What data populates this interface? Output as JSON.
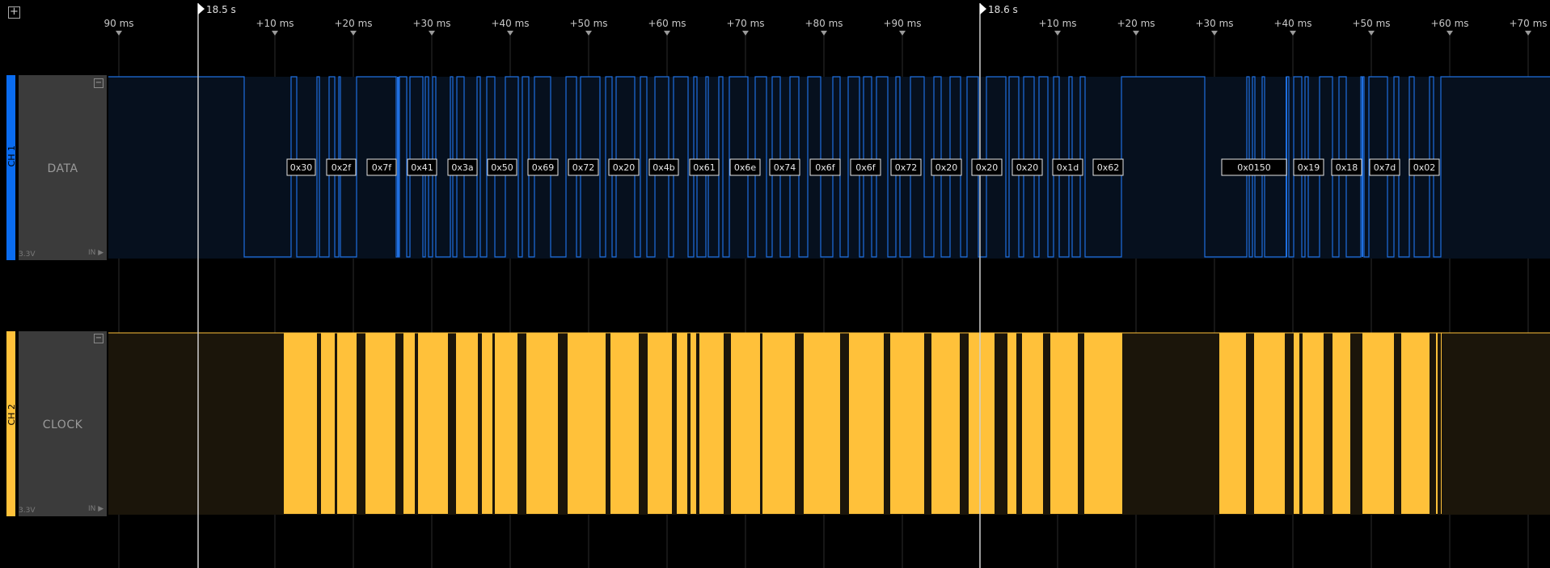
{
  "toolbar": {
    "add_icon": "plus-square-icon"
  },
  "markers": [
    {
      "label": "18.5 s"
    },
    {
      "label": "18.6 s"
    }
  ],
  "ticks": [
    "90 ms",
    "+10 ms",
    "+20 ms",
    "+30 ms",
    "+40 ms",
    "+50 ms",
    "+60 ms",
    "+70 ms",
    "+80 ms",
    "+90 ms",
    "+10 ms",
    "+20 ms",
    "+30 ms",
    "+40 ms",
    "+50 ms",
    "+60 ms",
    "+70 ms"
  ],
  "channels": [
    {
      "tag": "CH 1",
      "name": "DATA",
      "voltage": "3.3V",
      "direction": "IN",
      "color": "#0a6cf0"
    },
    {
      "tag": "CH 2",
      "name": "CLOCK",
      "voltage": "3.3V",
      "direction": "IN",
      "color": "#ffc13a"
    }
  ],
  "decoded": [
    "0x30",
    "0x2f",
    "0x7f",
    "0x41",
    "0x3a",
    "0x50",
    "0x69",
    "0x72",
    "0x20",
    "0x4b",
    "0x61",
    "0x6e",
    "0x74",
    "0x6f",
    "0x6f",
    "0x72",
    "0x20",
    "0x20",
    "0x20",
    "0x1d",
    "0x62",
    "0x0150",
    "0x19",
    "0x18",
    "0x7d",
    "0x02"
  ],
  "colors": {
    "data": "#1f6fe0",
    "clock": "#ffc13a",
    "data_bg": "#06101e",
    "clock_bg": "#1b150a"
  }
}
